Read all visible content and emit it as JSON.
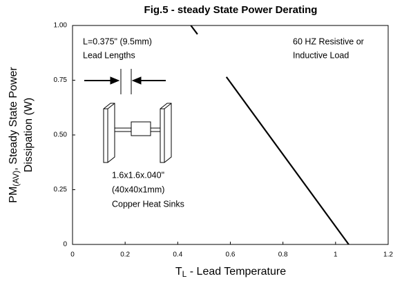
{
  "chart_data": {
    "type": "line",
    "title": "Fig.5 - steady State Power Derating",
    "y_label": {
      "main": "PM",
      "sub": "(AV)",
      "rest": ", Steady State Power",
      "line2": "Dissipation (W)"
    },
    "x_label": {
      "main": "T",
      "sub": "L",
      "rest": " - Lead Temperature"
    },
    "x": [
      0.45,
      0.475,
      0.5,
      0.585,
      1.05
    ],
    "series": [
      {
        "color": "#000000",
        "values": [
          1.0,
          0.96,
          null,
          0.765,
          0
        ]
      }
    ],
    "xlim": [
      0,
      1.2
    ],
    "xticks": [
      0,
      0.2,
      0.4,
      0.6,
      0.8,
      1,
      1.2
    ],
    "ylim": [
      0,
      1
    ],
    "yticks": [
      0,
      {
        "value": 0.25,
        "label": "0.25"
      },
      {
        "value": 0.5,
        "label": "0.50"
      },
      {
        "value": 0.75,
        "label": "0.75"
      },
      {
        "value": 1,
        "label": "1.00"
      }
    ],
    "grid": false,
    "annotations": [
      "L=0.375\" (9.5mm)",
      "Lead Lengths",
      "60 HZ Resistive or",
      "Inductive Load",
      "1.6x1.6x.040\"",
      "(40x40x1mm)",
      "Copper Heat Sinks"
    ]
  }
}
